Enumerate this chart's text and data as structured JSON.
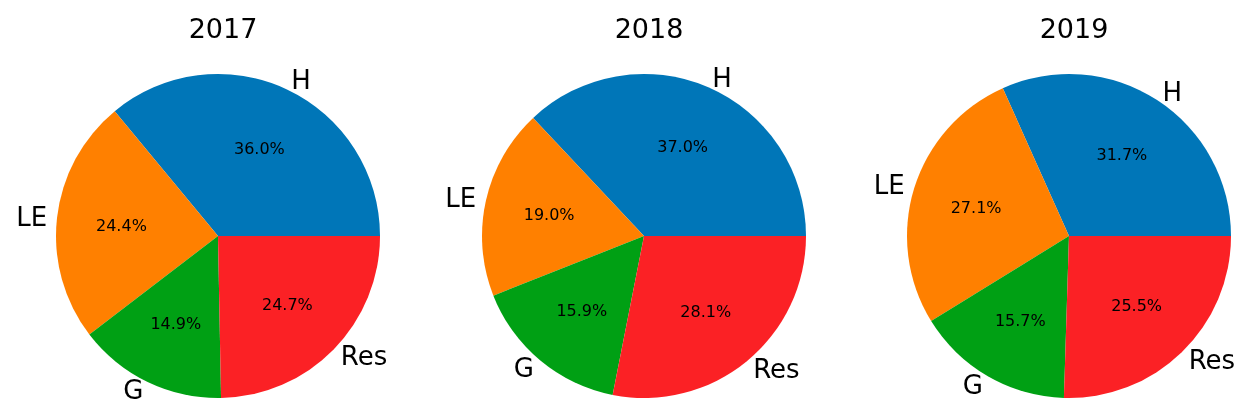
{
  "chart_data": [
    {
      "type": "pie",
      "title": "2017",
      "categories": [
        "H",
        "LE",
        "G",
        "Res"
      ],
      "values": [
        36.0,
        24.4,
        14.9,
        24.7
      ],
      "value_labels": [
        "36.0%",
        "24.4%",
        "14.9%",
        "24.7%"
      ],
      "colors": [
        "#0076b8",
        "#ff8000",
        "#00a014",
        "#fb2125"
      ]
    },
    {
      "type": "pie",
      "title": "2018",
      "categories": [
        "H",
        "LE",
        "G",
        "Res"
      ],
      "values": [
        37.0,
        19.0,
        15.9,
        28.1
      ],
      "value_labels": [
        "37.0%",
        "19.0%",
        "15.9%",
        "28.1%"
      ],
      "colors": [
        "#0076b8",
        "#ff8000",
        "#00a014",
        "#fb2125"
      ]
    },
    {
      "type": "pie",
      "title": "2019",
      "categories": [
        "H",
        "LE",
        "G",
        "Res"
      ],
      "values": [
        31.7,
        27.1,
        15.7,
        25.5
      ],
      "value_labels": [
        "31.7%",
        "27.1%",
        "15.7%",
        "25.5%"
      ],
      "colors": [
        "#0076b8",
        "#ff8000",
        "#00a014",
        "#fb2125"
      ]
    }
  ]
}
